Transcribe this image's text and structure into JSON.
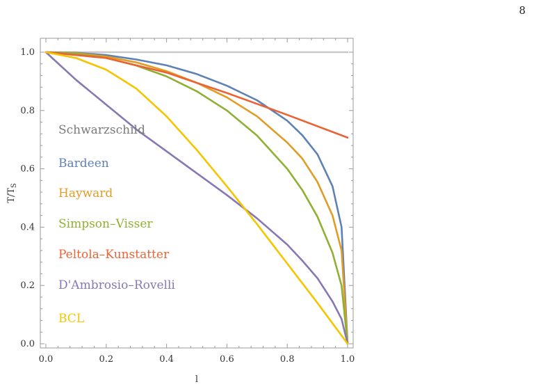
{
  "page": {
    "number": "8"
  },
  "chart_data": {
    "type": "line",
    "title": "",
    "xlabel": "l",
    "ylabel": "T/T",
    "ylabel_sub": "S",
    "xlim": [
      0,
      1
    ],
    "ylim": [
      0,
      1
    ],
    "x_ticks": [
      0.0,
      0.2,
      0.4,
      0.6,
      0.8,
      1.0
    ],
    "y_ticks": [
      0.0,
      0.2,
      0.4,
      0.6,
      0.8,
      1.0
    ],
    "x_tick_labels": [
      "0.0",
      "0.2",
      "0.4",
      "0.6",
      "0.8",
      "1.0"
    ],
    "y_tick_labels": [
      "0.0",
      "0.2",
      "0.4",
      "0.6",
      "0.8",
      "1.0"
    ],
    "grid": false,
    "legend": "inside-left",
    "series": [
      {
        "name": "Schwarzschild",
        "color": "#c8c8c8",
        "x": [
          0,
          0.2,
          0.4,
          0.6,
          0.8,
          1.0
        ],
        "y": [
          1.0,
          1.0,
          1.0,
          1.0,
          1.0,
          1.0
        ]
      },
      {
        "name": "Bardeen",
        "color": "#5e81b5",
        "x": [
          0,
          0.1,
          0.2,
          0.3,
          0.4,
          0.5,
          0.6,
          0.7,
          0.8,
          0.85,
          0.9,
          0.95,
          0.98,
          1.0
        ],
        "y": [
          1.0,
          0.998,
          0.99,
          0.975,
          0.955,
          0.925,
          0.885,
          0.835,
          0.765,
          0.715,
          0.65,
          0.54,
          0.4,
          0.0
        ]
      },
      {
        "name": "Hayward",
        "color": "#e19c24",
        "x": [
          0,
          0.1,
          0.2,
          0.3,
          0.4,
          0.5,
          0.6,
          0.7,
          0.8,
          0.85,
          0.9,
          0.95,
          0.98,
          1.0
        ],
        "y": [
          1.0,
          0.997,
          0.985,
          0.965,
          0.935,
          0.895,
          0.845,
          0.78,
          0.69,
          0.635,
          0.555,
          0.44,
          0.32,
          0.0
        ]
      },
      {
        "name": "Simpson–Visser",
        "color": "#8fb032",
        "x": [
          0,
          0.1,
          0.2,
          0.3,
          0.4,
          0.5,
          0.6,
          0.7,
          0.8,
          0.85,
          0.9,
          0.95,
          0.98,
          1.0
        ],
        "y": [
          1.0,
          0.995,
          0.98,
          0.954,
          0.917,
          0.866,
          0.8,
          0.714,
          0.6,
          0.527,
          0.436,
          0.312,
          0.199,
          0.0
        ]
      },
      {
        "name": "Peltola–Kunstatter",
        "color": "#eb6235",
        "x": [
          0,
          0.2,
          0.4,
          0.6,
          0.8,
          1.0
        ],
        "y": [
          1.0,
          0.98,
          0.93,
          0.86,
          0.785,
          0.707
        ]
      },
      {
        "name": "D'Ambrosio–Rovelli",
        "color": "#8778b3",
        "x": [
          0,
          0.1,
          0.2,
          0.3,
          0.4,
          0.5,
          0.6,
          0.7,
          0.8,
          0.85,
          0.9,
          0.95,
          0.98,
          1.0
        ],
        "y": [
          1.0,
          0.905,
          0.82,
          0.735,
          0.66,
          0.585,
          0.51,
          0.43,
          0.34,
          0.285,
          0.225,
          0.145,
          0.085,
          0.0
        ]
      },
      {
        "name": "BCL",
        "color": "#f5c500",
        "x": [
          0,
          0.1,
          0.2,
          0.3,
          0.4,
          0.5,
          0.6,
          0.7,
          0.8,
          0.9,
          1.0
        ],
        "y": [
          1.0,
          0.98,
          0.94,
          0.875,
          0.78,
          0.665,
          0.54,
          0.41,
          0.275,
          0.14,
          0.0
        ]
      }
    ]
  }
}
